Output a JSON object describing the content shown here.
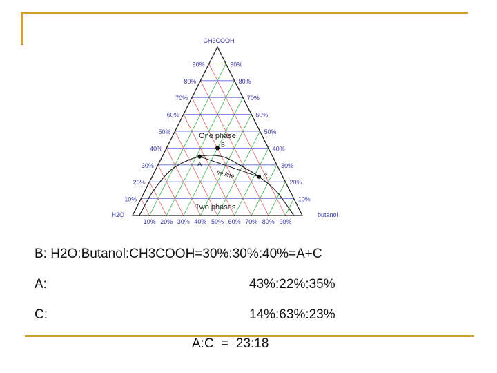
{
  "slide": {
    "accent_color": "#c9a227"
  },
  "diagram": {
    "apex_label": "CH3COOH",
    "left_label": "H2O",
    "right_label": "butanol",
    "left_ticks": [
      "10%",
      "20%",
      "30%",
      "40%",
      "50%",
      "60%",
      "70%",
      "80%",
      "90%"
    ],
    "right_ticks": [
      "90%",
      "80%",
      "70%",
      "60%",
      "50%",
      "40%",
      "30%",
      "20%",
      "10%"
    ],
    "bottom_ticks": [
      "10%",
      "20%",
      "30%",
      "40%",
      "50%",
      "60%",
      "70%",
      "80%",
      "90%"
    ],
    "region_one_phase": "One phase",
    "region_two_phases": "Two phases",
    "tie_line_label": "tie line",
    "points": [
      {
        "label": "A",
        "water": 43,
        "butanol": 22,
        "acid": 35
      },
      {
        "label": "B",
        "water": 30,
        "butanol": 30,
        "acid": 40
      },
      {
        "label": "C",
        "water": 14,
        "butanol": 63,
        "acid": 23
      }
    ],
    "colors": {
      "red_grid": "#e06060",
      "green_grid": "#39b04a",
      "blue_grid": "#5a63d6",
      "tick_label": "#3a3aa8",
      "outline": "#222222"
    }
  },
  "text": {
    "line_b": "B: H2O:Butanol:CH3COOH=30%:30%:40%=A+C",
    "line_a_label": "A:",
    "line_a_value": "43%:22%:35%",
    "line_c_label": "C:",
    "line_c_value": "14%:63%:23%",
    "ratio": "A:C  =  23:18"
  }
}
